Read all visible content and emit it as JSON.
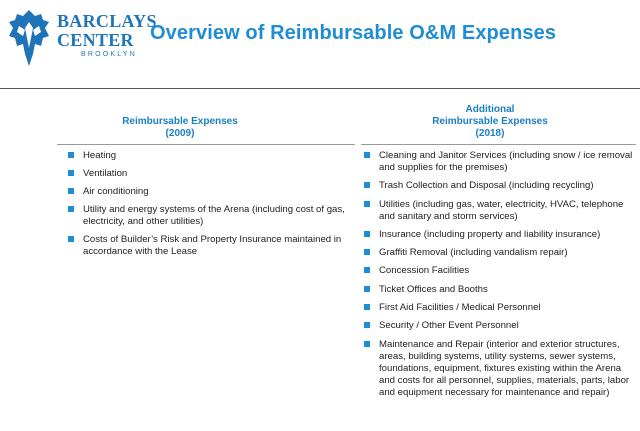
{
  "logo": {
    "line1": "BARCLAYS",
    "line2": "CENTER",
    "line3": "BROOKLYN"
  },
  "title": "Overview of Reimbursable O&M Expenses",
  "left_column": {
    "heading_line1": "Reimbursable Expenses",
    "heading_line2": "(2009)",
    "items": [
      "Heating",
      "Ventilation",
      "Air conditioning",
      "Utility and energy systems of the Arena (including cost of gas, electricity, and other utilities)",
      "Costs of Builder’s Risk and Property Insurance maintained in accordance with the Lease"
    ]
  },
  "right_column": {
    "heading_line1": "Additional",
    "heading_line2": "Reimbursable Expenses",
    "heading_line3": "(2018)",
    "items": [
      "Cleaning and Janitor Services (including snow / ice removal and supplies for the premises)",
      "Trash Collection and Disposal (including recycling)",
      "Utilities (including gas, water, electricity, HVAC, telephone and sanitary and storm services)",
      "Insurance (including property and liability insurance)",
      "Graffiti Removal (including vandalism repair)",
      "Concession Facilities",
      "Ticket Offices and Booths",
      "First Aid Facilities / Medical Personnel",
      "Security / Other Event Personnel",
      "Maintenance and Repair (interior and exterior structures, areas, building systems, utility systems, sewer systems, foundations, equipment, fixtures existing within the Arena and costs for all personnel, supplies, materials, parts, labor and equipment necessary for maintenance and repair)"
    ]
  },
  "colors": {
    "brand_blue": "#1f74b8",
    "accent_blue": "#1f8dd6"
  }
}
